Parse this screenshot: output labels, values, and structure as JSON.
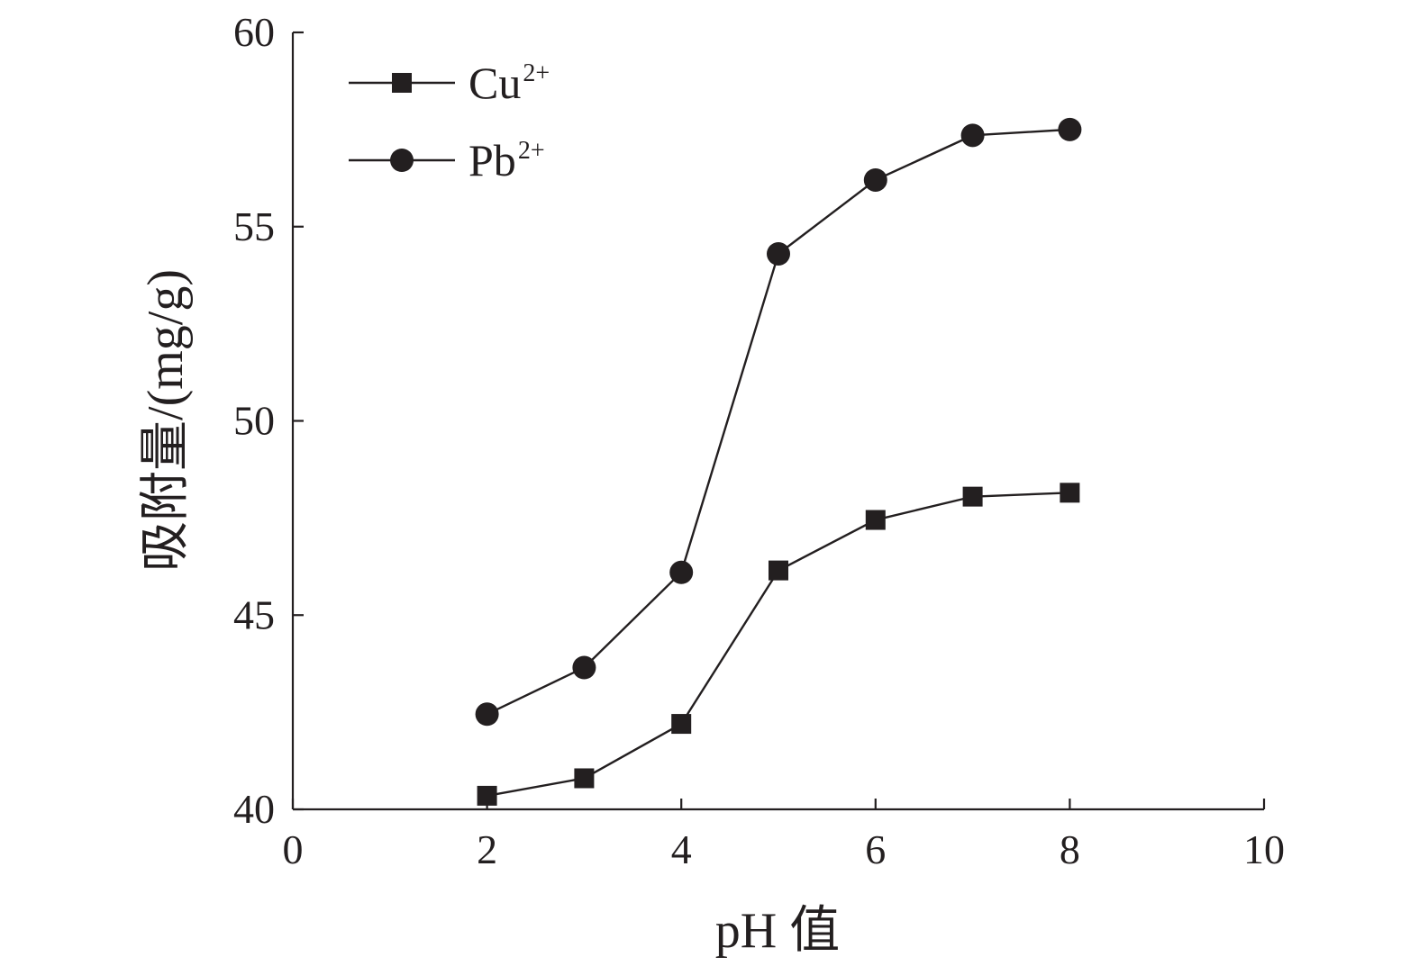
{
  "chart_data": {
    "type": "line",
    "xlabel": "pH 值",
    "ylabel": "吸附量/(mg/g)",
    "xlim": [
      0,
      10
    ],
    "ylim": [
      40,
      60
    ],
    "xticks": [
      0,
      2,
      4,
      6,
      8,
      10
    ],
    "yticks": [
      40,
      45,
      50,
      55,
      60
    ],
    "grid": false,
    "legend_position": "top-left",
    "series": [
      {
        "name": "Cu",
        "name_sup": "2+",
        "marker": "square",
        "color": "#231f20",
        "x": [
          2,
          3,
          4,
          5,
          6,
          7,
          8
        ],
        "y": [
          40.35,
          40.8,
          42.2,
          46.15,
          47.45,
          48.05,
          48.15
        ]
      },
      {
        "name": "Pb",
        "name_sup": "2+",
        "marker": "circle",
        "color": "#231f20",
        "x": [
          2,
          3,
          4,
          5,
          6,
          7,
          8
        ],
        "y": [
          42.45,
          43.65,
          46.1,
          54.3,
          56.2,
          57.35,
          57.5
        ]
      }
    ]
  }
}
